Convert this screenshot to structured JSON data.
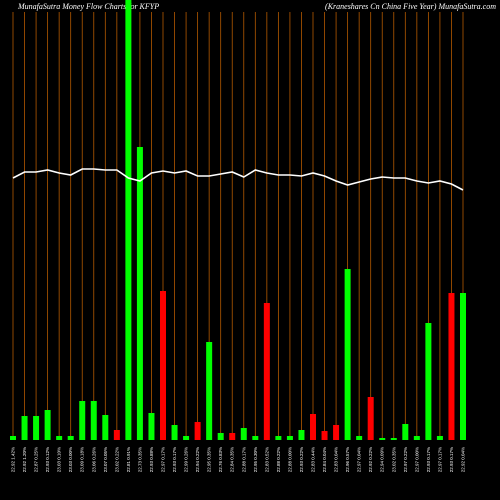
{
  "chart_data": {
    "type": "bar",
    "title": "MunafaSutra  Money Flow  Charts for KFYP",
    "subtitle": "(Kraneshares Cn   China  Five   Year) MunafaSutra.com",
    "categories": [
      "22.92 1.42%",
      "22.92 1.20%",
      "22.87 0.25%",
      "22.93 0.12%",
      "23.03 0.10%",
      "23.03 0.00%",
      "23.09 0.18%",
      "23.06 0.26%",
      "23.07 0.05%",
      "23.02 0.22%",
      "22.81 0.91%",
      "22.73 0.35%",
      "22.93 0.88%",
      "22.97 0.17%",
      "22.93 0.17%",
      "22.99 0.26%",
      "22.94 0.22%",
      "22.95 0.35%",
      "22.76 0.83%",
      "22.84 0.35%",
      "22.88 0.17%",
      "22.95 0.30%",
      "22.83 0.52%",
      "22.88 0.22%",
      "22.88 0.00%",
      "22.93 0.22%",
      "22.83 0.44%",
      "22.84 0.04%",
      "22.83 0.04%",
      "22.96 0.57%",
      "22.97 0.04%",
      "22.92 0.22%",
      "22.94 0.09%",
      "23.02 0.35%",
      "22.97 0.22%",
      "22.97 0.00%",
      "22.93 0.17%",
      "22.97 0.17%",
      "22.93 0.17%",
      "22.92 0.04%"
    ],
    "values": [
      4,
      24,
      24,
      30,
      4,
      4,
      39,
      39,
      25,
      10,
      440,
      293,
      27,
      149,
      15,
      4,
      18,
      98,
      7,
      7,
      12,
      4,
      137,
      4,
      4,
      10,
      26,
      9,
      15,
      171,
      4,
      43,
      2,
      2,
      16,
      4,
      117,
      4,
      147,
      147
    ],
    "colors": [
      "#00ff00",
      "#00ff00",
      "#00ff00",
      "#00ff00",
      "#00ff00",
      "#00ff00",
      "#00ff00",
      "#00ff00",
      "#00ff00",
      "#ff0000",
      "#00ff00",
      "#00ff00",
      "#00ff00",
      "#ff0000",
      "#00ff00",
      "#00ff00",
      "#ff0000",
      "#00ff00",
      "#00ff00",
      "#ff0000",
      "#00ff00",
      "#00ff00",
      "#ff0000",
      "#00ff00",
      "#00ff00",
      "#00ff00",
      "#ff0000",
      "#ff0000",
      "#ff0000",
      "#00ff00",
      "#00ff00",
      "#ff0000",
      "#00ff00",
      "#00ff00",
      "#00ff00",
      "#00ff00",
      "#00ff00",
      "#00ff00",
      "#ff0000",
      "#00ff00"
    ],
    "line": {
      "color": "#ffffff",
      "values": [
        262,
        268,
        268,
        270,
        267,
        265,
        271,
        271,
        270,
        270,
        262,
        259,
        267,
        269,
        267,
        269,
        264,
        264,
        266,
        268,
        263,
        270,
        267,
        265,
        265,
        264,
        267,
        264,
        259,
        255,
        258,
        261,
        263,
        262,
        262,
        259,
        257,
        259,
        256,
        250
      ]
    },
    "grid_color": "#b35900"
  }
}
